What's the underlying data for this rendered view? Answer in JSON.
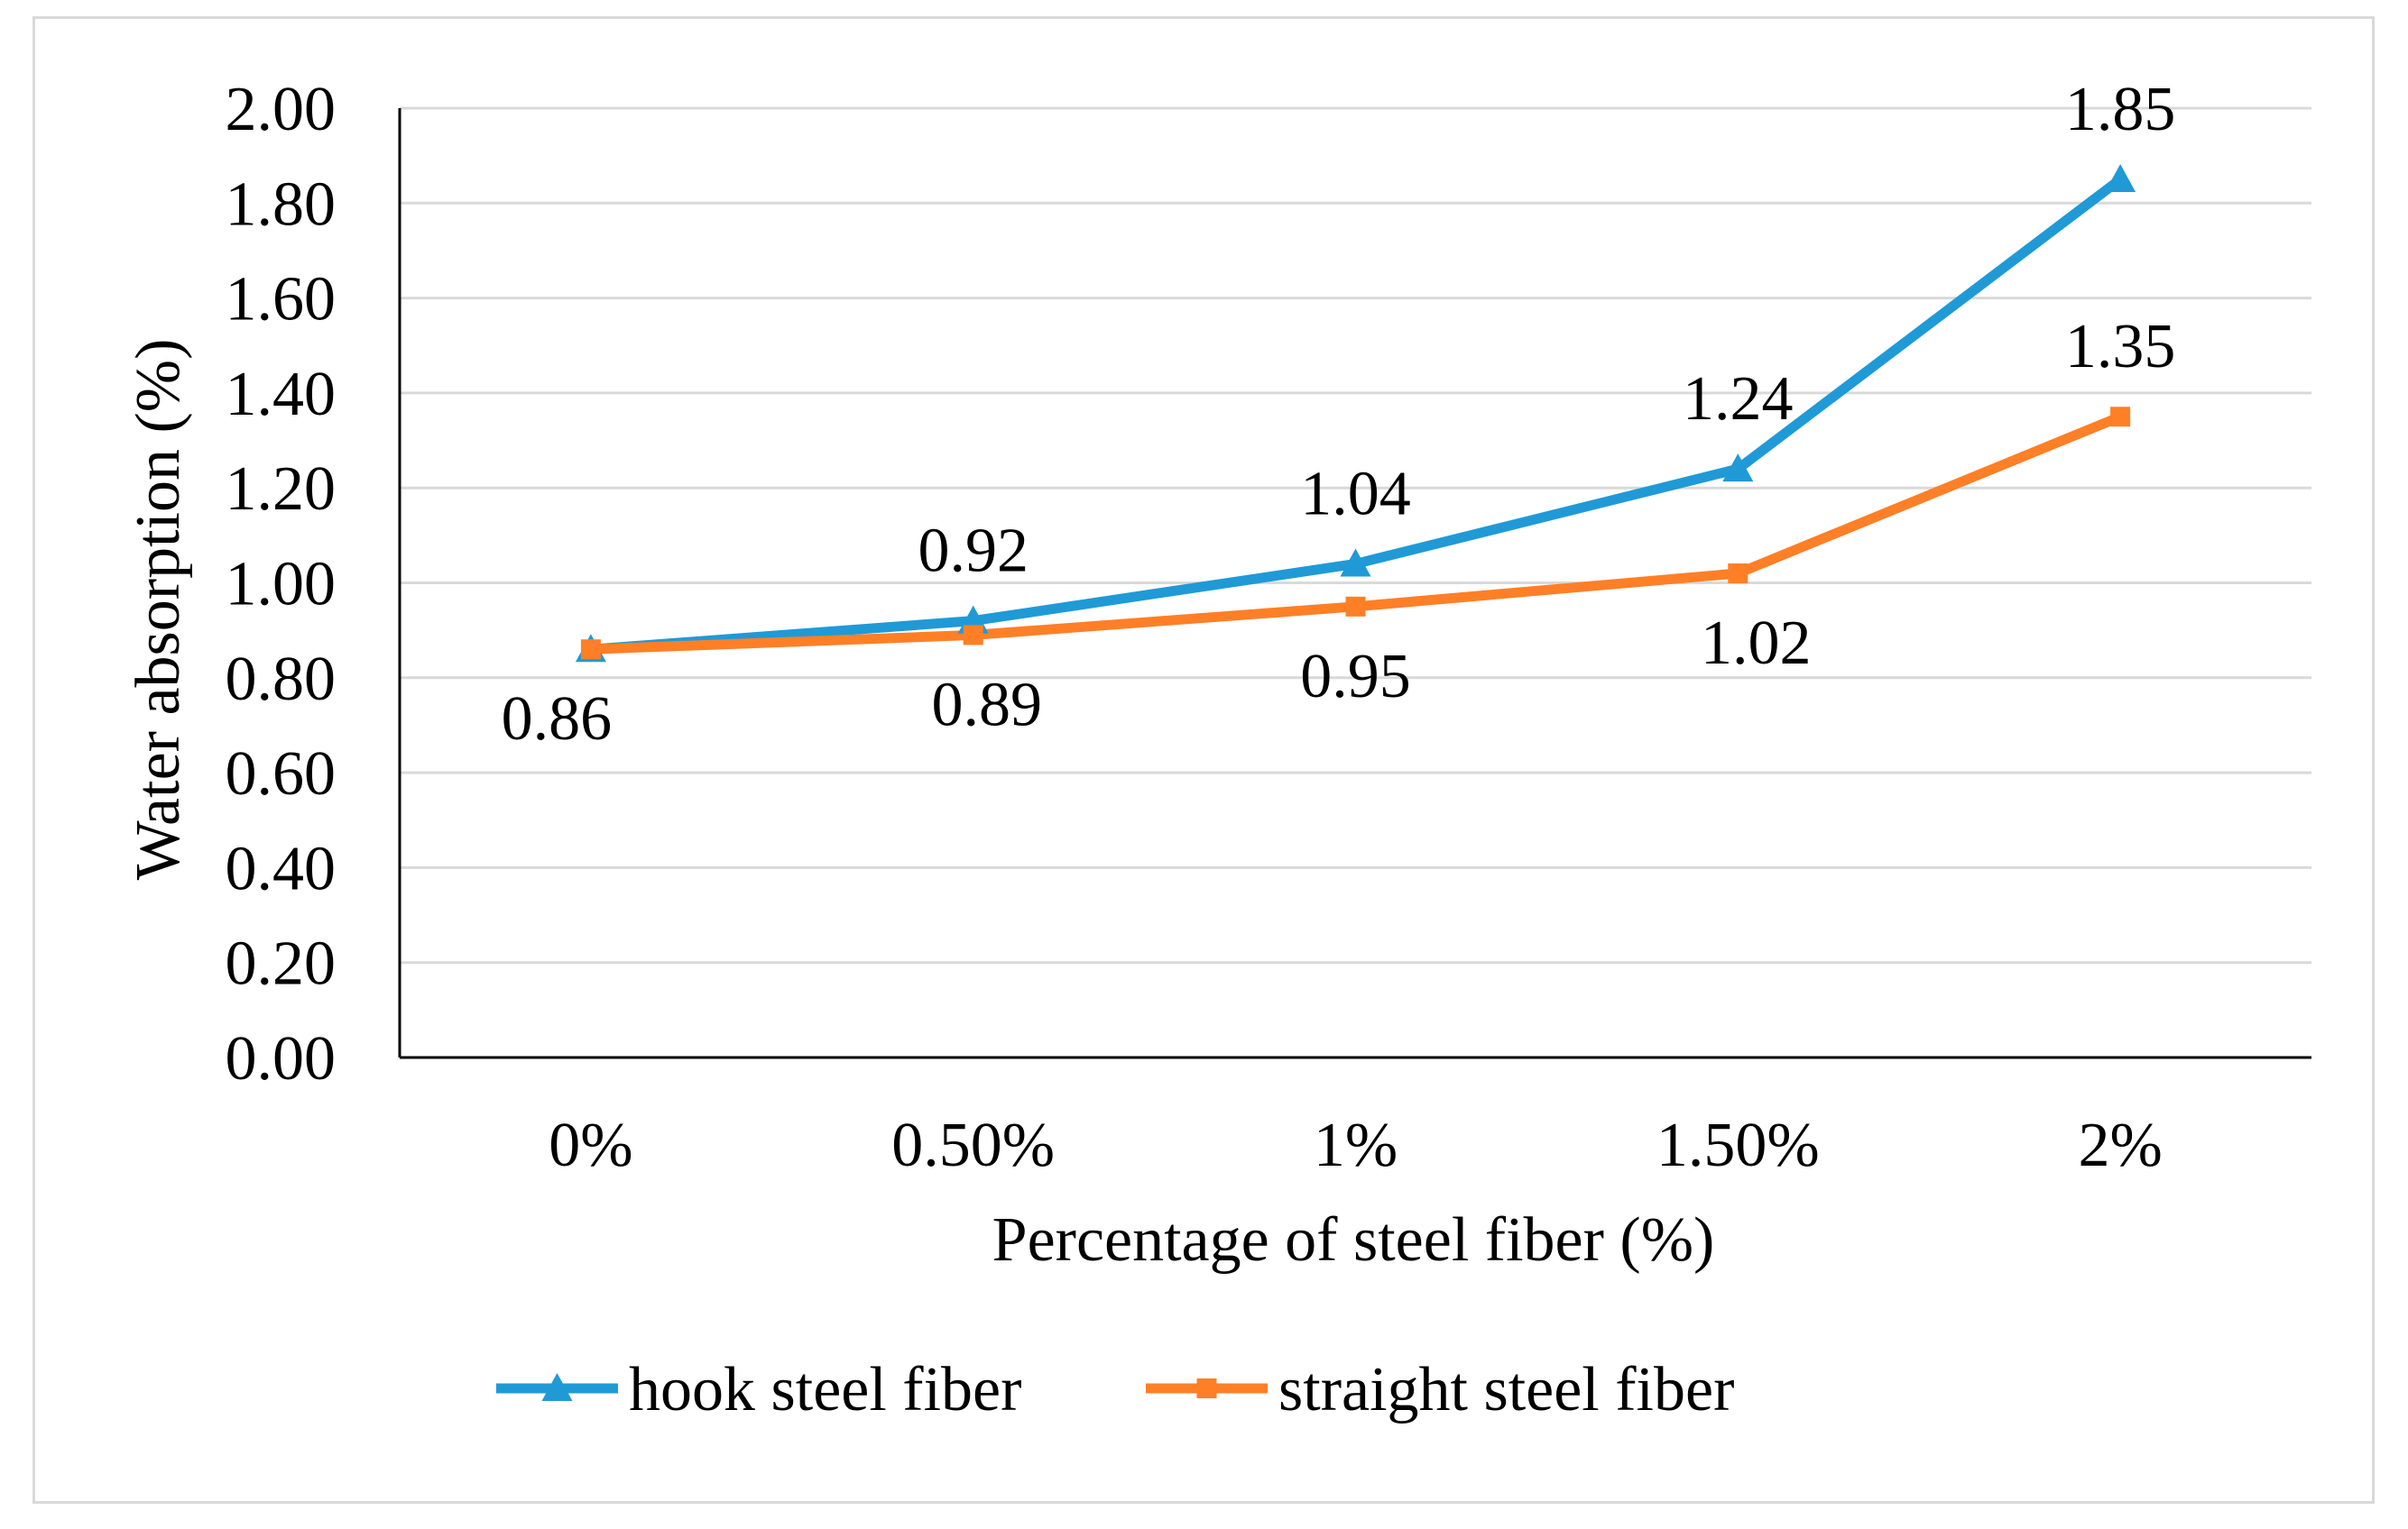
{
  "chart_data": {
    "type": "line",
    "categories": [
      "0%",
      "0.50%",
      "1%",
      "1.50%",
      "2%"
    ],
    "series": [
      {
        "name": "hook steel fiber",
        "marker": "triangle",
        "color": "#1f9ad6",
        "values": [
          0.86,
          0.92,
          1.04,
          1.24,
          1.85
        ],
        "labels": [
          "",
          "0.92",
          "1.04",
          "1.24",
          "1.85"
        ]
      },
      {
        "name": "straight steel fiber",
        "marker": "square",
        "color": "#ff7f27",
        "values": [
          0.86,
          0.89,
          0.95,
          1.02,
          1.35
        ],
        "labels": [
          "0.86",
          "0.89",
          "0.95",
          "1.02",
          "1.35"
        ]
      }
    ],
    "xlabel": "Percentage of steel fiber (%)",
    "ylabel": "Water absorption (%)",
    "ylim": [
      0,
      2
    ],
    "yticks": [
      "0.00",
      "0.20",
      "0.40",
      "0.60",
      "0.80",
      "1.00",
      "1.20",
      "1.40",
      "1.60",
      "1.80",
      "2.00"
    ],
    "grid": true,
    "legend": "bottom"
  }
}
